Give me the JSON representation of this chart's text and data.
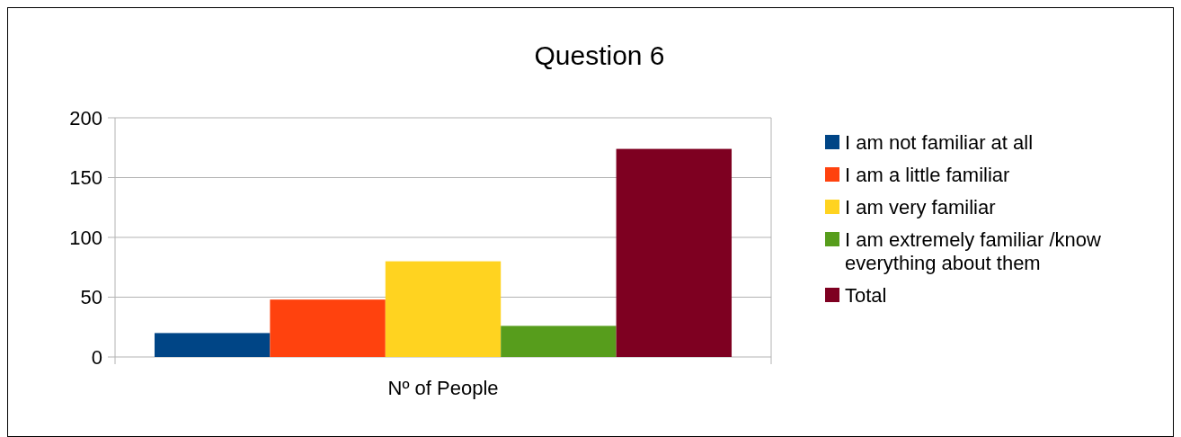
{
  "chart_data": {
    "type": "bar",
    "title": "Question 6",
    "categories": [
      "Nº of People"
    ],
    "series": [
      {
        "name": "I am not familiar at all",
        "color": "#004586",
        "values": [
          20
        ]
      },
      {
        "name": "I am a little familiar",
        "color": "#ff420e",
        "values": [
          48
        ]
      },
      {
        "name": "I am very familiar",
        "color": "#ffd320",
        "values": [
          80
        ]
      },
      {
        "name": "I am extremely familiar /know everything about them",
        "color": "#579d1c",
        "values": [
          26
        ]
      },
      {
        "name": "Total",
        "color": "#7e0021",
        "values": [
          174
        ]
      }
    ],
    "ylim": [
      0,
      200
    ],
    "yticks": [
      0,
      50,
      100,
      150,
      200
    ],
    "grid": "y",
    "legend": "right"
  }
}
